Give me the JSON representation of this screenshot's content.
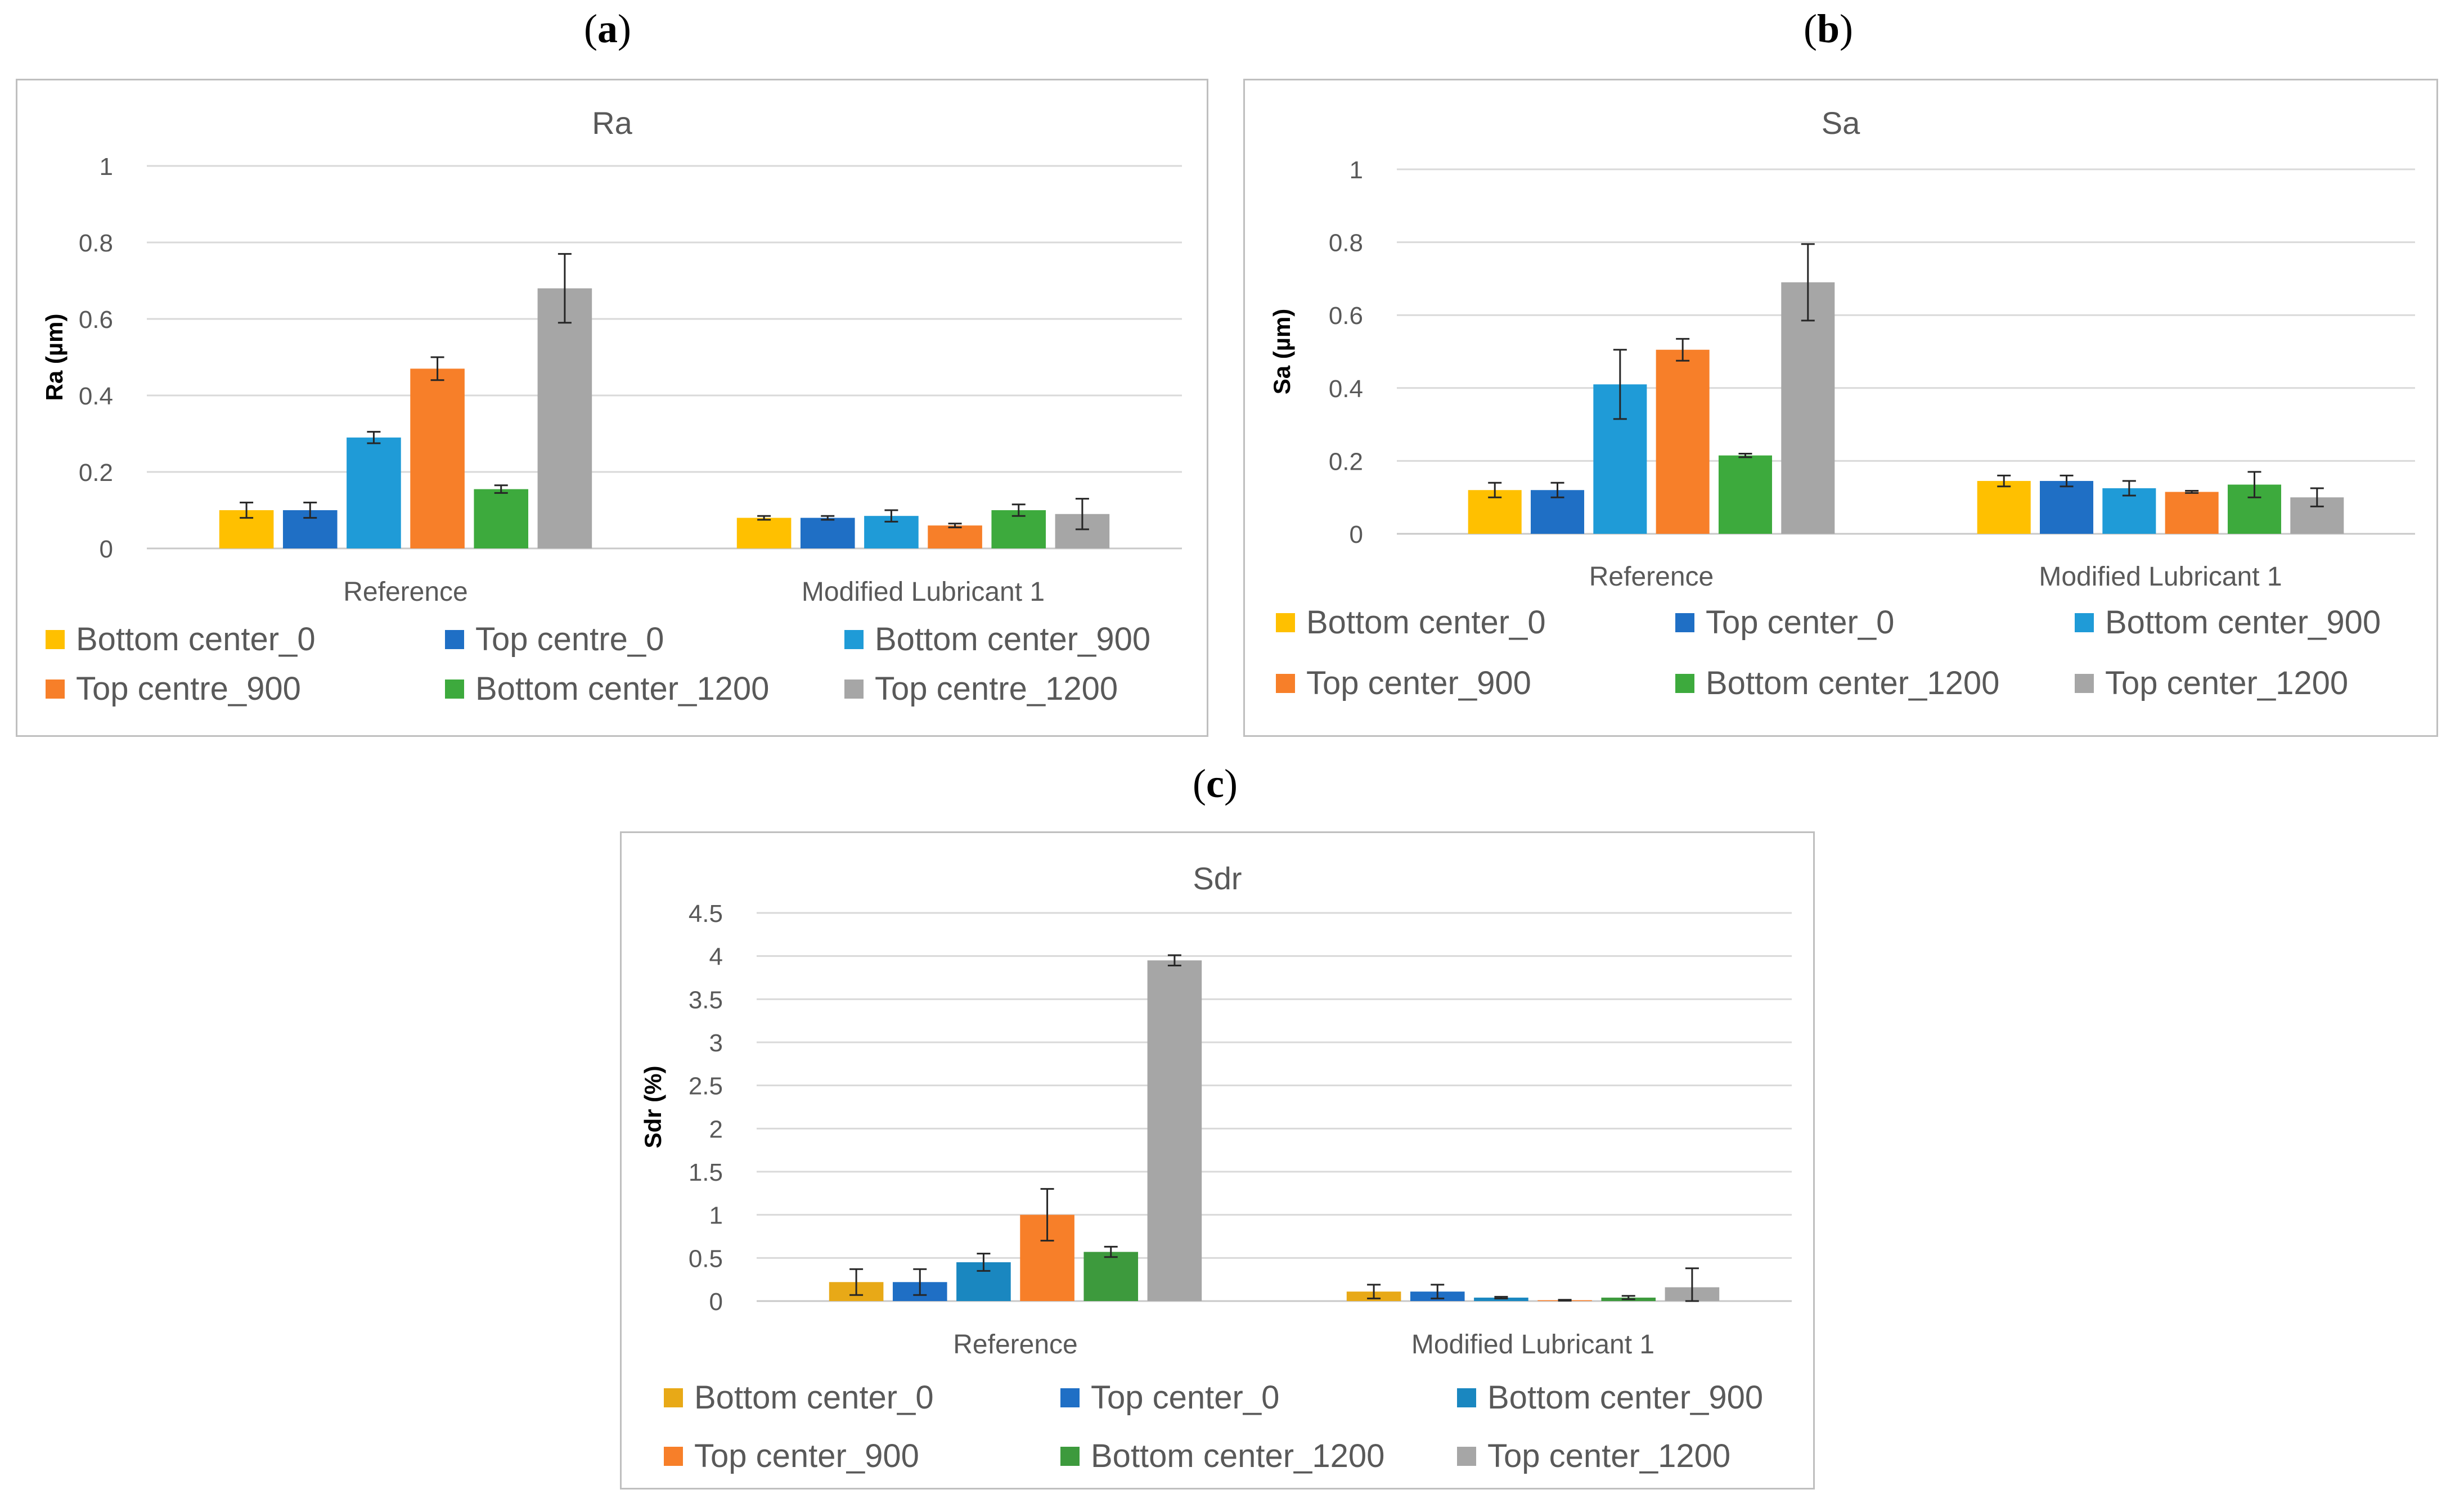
{
  "panels": [
    {
      "label_open": "(",
      "label_letter": "a",
      "label_close": ")"
    },
    {
      "label_open": "(",
      "label_letter": "b",
      "label_close": ")"
    },
    {
      "label_open": "(",
      "label_letter": "c",
      "label_close": ")"
    }
  ],
  "chart_data": [
    {
      "type": "bar",
      "title": "Ra",
      "xlabel": "",
      "ylabel": "Ra (µm)",
      "ylim": [
        0,
        1
      ],
      "yticks": [
        0,
        0.2,
        0.4,
        0.6,
        0.8,
        1
      ],
      "ytick_labels": [
        "0",
        "0.2",
        "0.4",
        "0.6",
        "0.8",
        "1"
      ],
      "grid": true,
      "legend_position": "bottom",
      "categories": [
        "Reference",
        "Modified Lubricant 1"
      ],
      "series": [
        {
          "name": "Bottom center_0",
          "color": "#FFC000",
          "values": [
            0.1,
            0.08
          ],
          "errors": [
            0.02,
            0.005
          ]
        },
        {
          "name": "Top centre_0",
          "color": "#1F6FC5",
          "values": [
            0.1,
            0.08
          ],
          "errors": [
            0.02,
            0.005
          ]
        },
        {
          "name": "Bottom center_900",
          "color": "#1F9BD7",
          "values": [
            0.29,
            0.085
          ],
          "errors": [
            0.015,
            0.015
          ]
        },
        {
          "name": "Top centre_900",
          "color": "#F77F29",
          "values": [
            0.47,
            0.06
          ],
          "errors": [
            0.03,
            0.005
          ]
        },
        {
          "name": "Bottom center_1200",
          "color": "#3DAA3D",
          "values": [
            0.155,
            0.1
          ],
          "errors": [
            0.01,
            0.015
          ]
        },
        {
          "name": "Top centre_1200",
          "color": "#A6A6A6",
          "values": [
            0.68,
            0.09
          ],
          "errors": [
            0.09,
            0.04
          ]
        }
      ]
    },
    {
      "type": "bar",
      "title": "Sa",
      "xlabel": "",
      "ylabel": "Sa (µm)",
      "ylim": [
        0,
        1
      ],
      "yticks": [
        0,
        0.2,
        0.4,
        0.6,
        0.8,
        1
      ],
      "ytick_labels": [
        "0",
        "0.2",
        "0.4",
        "0.6",
        "0.8",
        "1"
      ],
      "grid": true,
      "legend_position": "bottom",
      "categories": [
        "Reference",
        "Modified Lubricant 1"
      ],
      "series": [
        {
          "name": "Bottom center_0",
          "color": "#FFC000",
          "values": [
            0.12,
            0.145
          ],
          "errors": [
            0.02,
            0.015
          ]
        },
        {
          "name": "Top center_0",
          "color": "#1F6FC5",
          "values": [
            0.12,
            0.145
          ],
          "errors": [
            0.02,
            0.015
          ]
        },
        {
          "name": "Bottom center_900",
          "color": "#1F9BD7",
          "values": [
            0.41,
            0.125
          ],
          "errors": [
            0.095,
            0.02
          ]
        },
        {
          "name": "Top center_900",
          "color": "#F77F29",
          "values": [
            0.505,
            0.115
          ],
          "errors": [
            0.03,
            0.003
          ]
        },
        {
          "name": "Bottom center_1200",
          "color": "#3DAA3D",
          "values": [
            0.215,
            0.135
          ],
          "errors": [
            0.005,
            0.035
          ]
        },
        {
          "name": "Top center_1200",
          "color": "#A6A6A6",
          "values": [
            0.69,
            0.1
          ],
          "errors": [
            0.105,
            0.025
          ]
        }
      ]
    },
    {
      "type": "bar",
      "title": "Sdr",
      "xlabel": "",
      "ylabel": "Sdr (%)",
      "ylim": [
        0,
        4.5
      ],
      "yticks": [
        0,
        0.5,
        1,
        1.5,
        2,
        2.5,
        3,
        3.5,
        4,
        4.5
      ],
      "ytick_labels": [
        "0",
        "0.5",
        "1",
        "1.5",
        "2",
        "2.5",
        "3",
        "3.5",
        "4",
        "4.5"
      ],
      "grid": true,
      "legend_position": "bottom",
      "categories": [
        "Reference",
        "Modified Lubricant 1"
      ],
      "series": [
        {
          "name": "Bottom center_0",
          "color": "#E8A917",
          "values": [
            0.22,
            0.11
          ],
          "errors": [
            0.15,
            0.08
          ]
        },
        {
          "name": "Top center_0",
          "color": "#1F6FC5",
          "values": [
            0.22,
            0.11
          ],
          "errors": [
            0.15,
            0.08
          ]
        },
        {
          "name": "Bottom center_900",
          "color": "#1A87C0",
          "values": [
            0.45,
            0.04
          ],
          "errors": [
            0.1,
            0.01
          ]
        },
        {
          "name": "Top center_900",
          "color": "#F77F29",
          "values": [
            1.0,
            0.01
          ],
          "errors": [
            0.3,
            0.005
          ]
        },
        {
          "name": "Bottom center_1200",
          "color": "#3D9A3D",
          "values": [
            0.57,
            0.04
          ],
          "errors": [
            0.06,
            0.02
          ]
        },
        {
          "name": "Top center_1200",
          "color": "#A6A6A6",
          "values": [
            3.95,
            0.16
          ],
          "errors": [
            0.06,
            0.22
          ]
        }
      ]
    }
  ]
}
